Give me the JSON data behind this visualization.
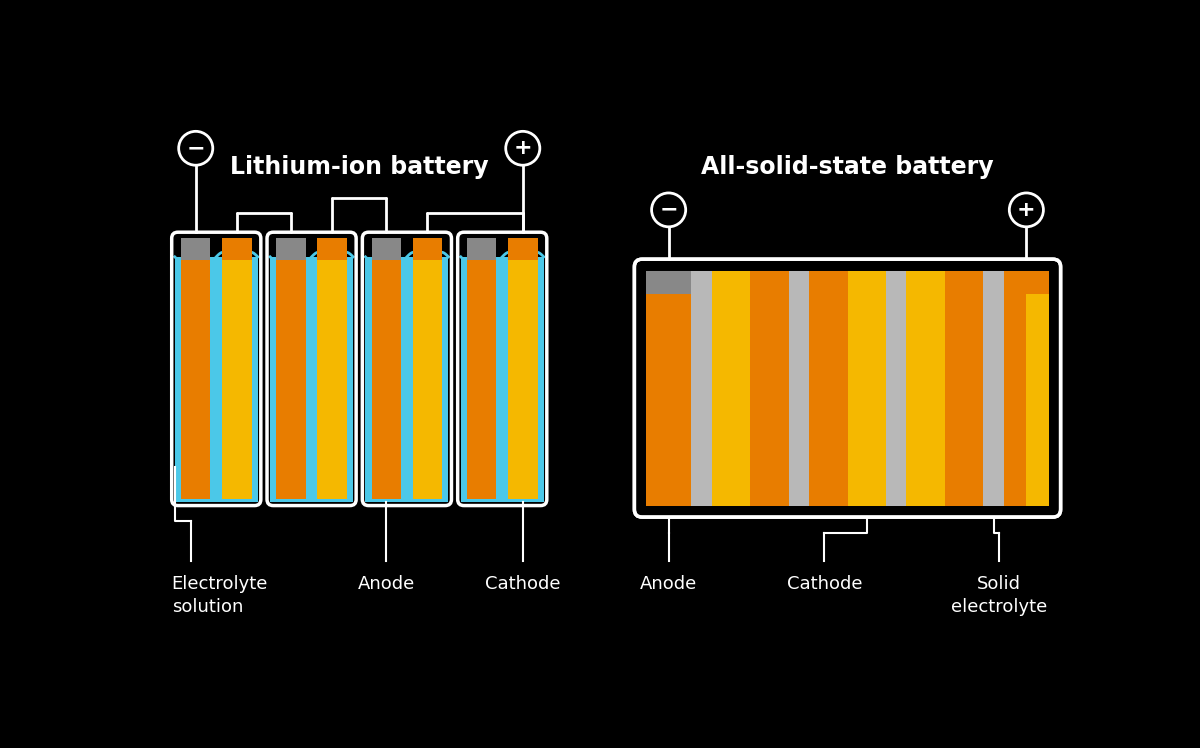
{
  "bg_color": "#000000",
  "white": "#ffffff",
  "orange_dark": "#e87d00",
  "orange_light": "#f5b800",
  "gray_electrode": "#888888",
  "blue_electrolyte": "#4bc8e8",
  "gray_solid": "#b8b8b8",
  "dark_bg": "#111111",
  "li_title": "Lithium-ion battery",
  "ss_title": "All-solid-state battery",
  "li_label_electrolyte": "Electrolyte\nsolution",
  "li_label_anode": "Anode",
  "li_label_cathode": "Cathode",
  "ss_label_anode": "Anode",
  "ss_label_cathode": "Cathode",
  "ss_label_solid": "Solid\nelectrolyte",
  "title_fontsize": 17,
  "label_fontsize": 13
}
